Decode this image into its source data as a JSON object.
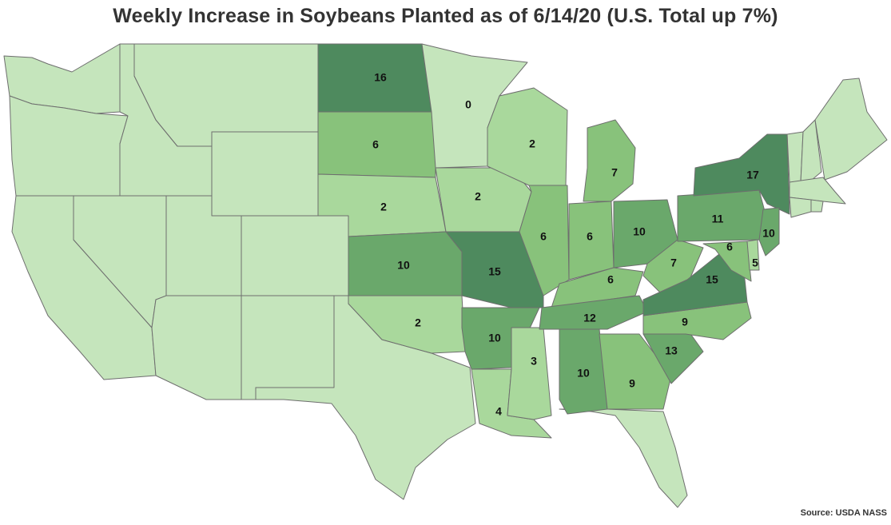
{
  "title": "Weekly Increase in Soybeans Planted as of 6/14/20 (U.S. Total up 7%)",
  "source": "Source: USDA NASS",
  "colors": {
    "level_0": "#c5e5bc",
    "level_1": "#a9d89c",
    "level_2": "#88c27b",
    "level_3": "#6aa86b",
    "level_4": "#4e8a5e",
    "border": "#6e6e6e"
  },
  "states": [
    {
      "abbr": "ND",
      "value": "16"
    },
    {
      "abbr": "SD",
      "value": "6"
    },
    {
      "abbr": "NE",
      "value": "2"
    },
    {
      "abbr": "KS",
      "value": "10"
    },
    {
      "abbr": "OK",
      "value": "2"
    },
    {
      "abbr": "MN",
      "value": "0"
    },
    {
      "abbr": "IA",
      "value": "2"
    },
    {
      "abbr": "MO",
      "value": "15"
    },
    {
      "abbr": "AR",
      "value": "10"
    },
    {
      "abbr": "LA",
      "value": "4"
    },
    {
      "abbr": "WI",
      "value": "2"
    },
    {
      "abbr": "IL",
      "value": "6"
    },
    {
      "abbr": "MS",
      "value": "3"
    },
    {
      "abbr": "MI",
      "value": "7"
    },
    {
      "abbr": "IN",
      "value": "6"
    },
    {
      "abbr": "KY",
      "value": "6"
    },
    {
      "abbr": "TN",
      "value": "12"
    },
    {
      "abbr": "AL",
      "value": "10"
    },
    {
      "abbr": "OH",
      "value": "10"
    },
    {
      "abbr": "WV",
      "value": "7"
    },
    {
      "abbr": "GA",
      "value": "9"
    },
    {
      "abbr": "SC",
      "value": "13"
    },
    {
      "abbr": "NC",
      "value": "9"
    },
    {
      "abbr": "VA",
      "value": "15"
    },
    {
      "abbr": "PA",
      "value": "11"
    },
    {
      "abbr": "NY",
      "value": "17"
    },
    {
      "abbr": "NJ",
      "value": "10"
    },
    {
      "abbr": "MD",
      "value": "6"
    },
    {
      "abbr": "DE",
      "value": "5"
    }
  ]
}
